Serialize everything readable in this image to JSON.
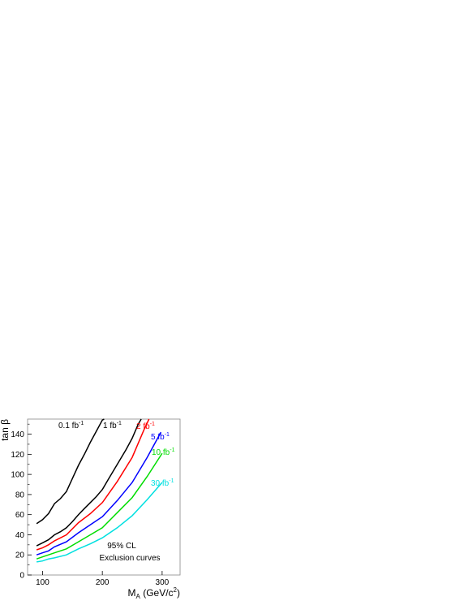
{
  "chart_data": {
    "type": "line",
    "xlabel": "M_A (GeV/c²)",
    "xlabel_main": "M",
    "xlabel_sub": "A",
    "xlabel_rest": " (GeV/c",
    "xlabel_sup": "2",
    "xlabel_close": ")",
    "ylabel": "tan β",
    "xlim": [
      75,
      330
    ],
    "ylim": [
      0,
      155
    ],
    "xticks": [
      100,
      200,
      300
    ],
    "yticks": [
      0,
      20,
      40,
      60,
      80,
      100,
      120,
      140
    ],
    "grid": false,
    "legend": "inline labels near curve ends",
    "annotations": [
      "95% CL",
      "Exclusion curves"
    ],
    "series": [
      {
        "name": "0.1 fb⁻¹",
        "color": "#000000",
        "x": [
          90,
          100,
          110,
          120,
          130,
          140,
          150,
          160,
          170,
          180,
          190,
          200,
          203
        ],
        "y": [
          51,
          55,
          61,
          71,
          76,
          83,
          96,
          109,
          120,
          132,
          143,
          154,
          155
        ]
      },
      {
        "name": "1 fb⁻¹",
        "color": "#000000",
        "x": [
          90,
          100,
          110,
          120,
          130,
          140,
          150,
          160,
          170,
          180,
          190,
          200,
          210,
          220,
          230,
          240,
          250,
          260,
          265
        ],
        "y": [
          29,
          32,
          35,
          40,
          43,
          47,
          53,
          60,
          66,
          72,
          78,
          85,
          95,
          105,
          115,
          125,
          136,
          150,
          155
        ]
      },
      {
        "name": "2 fb⁻¹",
        "color": "#ff0000",
        "x": [
          90,
          100,
          110,
          120,
          140,
          160,
          180,
          200,
          225,
          250,
          270,
          278
        ],
        "y": [
          25,
          27,
          30,
          34,
          40,
          52,
          61,
          72,
          93,
          117,
          145,
          155
        ]
      },
      {
        "name": "5 fb⁻¹",
        "color": "#0000ff",
        "x": [
          90,
          100,
          110,
          120,
          140,
          160,
          180,
          200,
          225,
          250,
          275,
          298
        ],
        "y": [
          20,
          22,
          24,
          28,
          33,
          42,
          50,
          58,
          74,
          92,
          117,
          142
        ]
      },
      {
        "name": "10 fb⁻¹",
        "color": "#00dd00",
        "x": [
          90,
          100,
          110,
          120,
          140,
          160,
          180,
          200,
          225,
          250,
          275,
          300
        ],
        "y": [
          16,
          18,
          20,
          22,
          26,
          33,
          40,
          47,
          62,
          77,
          98,
          121
        ]
      },
      {
        "name": "30 fb⁻¹",
        "color": "#00e0e0",
        "x": [
          90,
          100,
          110,
          120,
          140,
          160,
          180,
          200,
          225,
          250,
          275,
          300
        ],
        "y": [
          13,
          14,
          16,
          17,
          20,
          26,
          31,
          37,
          47,
          59,
          75,
          92
        ]
      }
    ]
  }
}
